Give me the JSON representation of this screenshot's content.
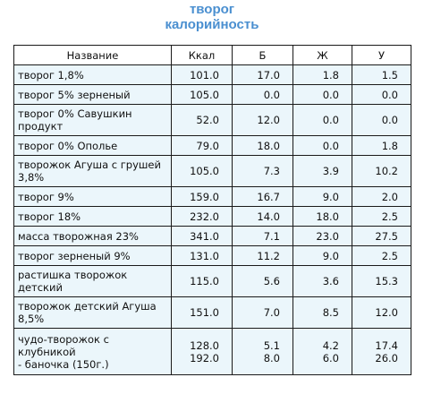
{
  "title": {
    "line1": "творог",
    "line2": "калорийность"
  },
  "table": {
    "headers": [
      "Название",
      "Ккал",
      "Б",
      "Ж",
      "У"
    ],
    "rows": [
      {
        "name": [
          "творог 1,8%"
        ],
        "kcal": [
          "101.0"
        ],
        "protein": [
          "17.0"
        ],
        "fat": [
          "1.8"
        ],
        "carbs": [
          "1.5"
        ]
      },
      {
        "name": [
          "творог 5% зерненый"
        ],
        "kcal": [
          "105.0"
        ],
        "protein": [
          "0.0"
        ],
        "fat": [
          "0.0"
        ],
        "carbs": [
          "0.0"
        ]
      },
      {
        "name": [
          "творог 0% Савушкин",
          "продукт"
        ],
        "kcal": [
          "52.0"
        ],
        "protein": [
          "12.0"
        ],
        "fat": [
          "0.0"
        ],
        "carbs": [
          "0.0"
        ]
      },
      {
        "name": [
          "творог 0% Ополье"
        ],
        "kcal": [
          "79.0"
        ],
        "protein": [
          "18.0"
        ],
        "fat": [
          "0.0"
        ],
        "carbs": [
          "1.8"
        ]
      },
      {
        "name": [
          "творожок Агуша с грушей",
          "3,8%"
        ],
        "kcal": [
          "105.0"
        ],
        "protein": [
          "7.3"
        ],
        "fat": [
          "3.9"
        ],
        "carbs": [
          "10.2"
        ]
      },
      {
        "name": [
          "творог 9%"
        ],
        "kcal": [
          "159.0"
        ],
        "protein": [
          "16.7"
        ],
        "fat": [
          "9.0"
        ],
        "carbs": [
          "2.0"
        ]
      },
      {
        "name": [
          "творог 18%"
        ],
        "kcal": [
          "232.0"
        ],
        "protein": [
          "14.0"
        ],
        "fat": [
          "18.0"
        ],
        "carbs": [
          "2.5"
        ]
      },
      {
        "name": [
          "масса творожная 23%"
        ],
        "kcal": [
          "341.0"
        ],
        "protein": [
          "7.1"
        ],
        "fat": [
          "23.0"
        ],
        "carbs": [
          "27.5"
        ]
      },
      {
        "name": [
          "творог зерненый 9%"
        ],
        "kcal": [
          "131.0"
        ],
        "protein": [
          "11.2"
        ],
        "fat": [
          "9.0"
        ],
        "carbs": [
          "2.5"
        ]
      },
      {
        "name": [
          "растишка творожок",
          "детский"
        ],
        "kcal": [
          "115.0"
        ],
        "protein": [
          "5.6"
        ],
        "fat": [
          "3.6"
        ],
        "carbs": [
          "15.3"
        ]
      },
      {
        "name": [
          "творожок детский Агуша",
          "8,5%"
        ],
        "kcal": [
          "151.0"
        ],
        "protein": [
          "7.0"
        ],
        "fat": [
          "8.5"
        ],
        "carbs": [
          "12.0"
        ]
      },
      {
        "name": [
          "чудо-творожок с",
          "клубникой",
          "- баночка (150г.)"
        ],
        "kcal": [
          "128.0",
          "192.0"
        ],
        "protein": [
          "5.1",
          "8.0"
        ],
        "fat": [
          "4.2",
          "6.0"
        ],
        "carbs": [
          "17.4",
          "26.0"
        ]
      }
    ]
  }
}
